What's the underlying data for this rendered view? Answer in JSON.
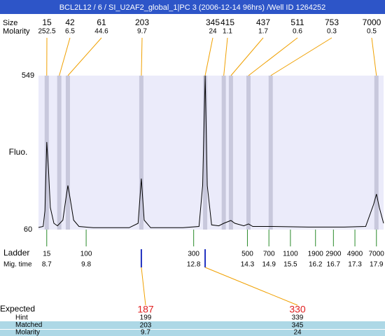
{
  "header": {
    "title": "BCL2L12 / 6 / SI_U2AF2_global_1|PC 3 (2006-12-14 96hrs) /Well ID 1264252"
  },
  "chart_data": {
    "type": "electropherogram",
    "y_label": "Fluo.",
    "ylim": [
      60,
      549
    ],
    "yticks": [
      60,
      549
    ],
    "xlim": [
      8.47,
      18.1
    ],
    "peak_row_labels": [
      "Size",
      "Molarity"
    ],
    "peaks": {
      "time": [
        8.7,
        9.05,
        9.29,
        11.34,
        13.12,
        13.64,
        13.84,
        14.33,
        14.95,
        17.9
      ],
      "size": [
        15,
        42,
        61,
        203,
        345,
        415,
        437,
        511,
        753,
        7000
      ],
      "molarity": [
        252.5,
        6.5,
        44.6,
        9.7,
        24,
        1.1,
        1.7,
        0.6,
        0.3,
        0.5
      ]
    },
    "ladder": {
      "label": "Ladder",
      "time_label": "Mig. time",
      "sizes": [
        15,
        100,
        300,
        500,
        700,
        1100,
        1900,
        2900,
        4900,
        7000
      ],
      "times": [
        8.7,
        9.8,
        12.8,
        14.3,
        14.9,
        15.5,
        16.2,
        16.7,
        17.3,
        17.9
      ]
    },
    "trace": {
      "x": [
        8.47,
        8.6,
        8.65,
        8.7,
        8.75,
        8.8,
        8.9,
        9.0,
        9.15,
        9.25,
        9.29,
        9.35,
        9.45,
        9.6,
        10,
        11,
        11.25,
        11.34,
        11.42,
        11.6,
        12.5,
        12.95,
        13.05,
        13.12,
        13.18,
        13.3,
        13.5,
        13.64,
        13.84,
        13.95,
        14.2,
        14.33,
        14.45,
        15,
        16,
        17,
        17.6,
        17.82,
        17.9,
        17.98,
        18.1
      ],
      "values": [
        67,
        70,
        120,
        338,
        250,
        130,
        80,
        72,
        90,
        170,
        200,
        160,
        90,
        70,
        66,
        66,
        80,
        222,
        90,
        66,
        66,
        70,
        200,
        549,
        200,
        75,
        72,
        80,
        89,
        80,
        72,
        78,
        70,
        70,
        68,
        68,
        70,
        140,
        173,
        130,
        80
      ]
    },
    "expected": {
      "label": "Expected",
      "row_labels": [
        "Hint",
        "Matched",
        "Molarity"
      ],
      "expected": [
        187,
        330
      ],
      "hint": [
        199,
        339
      ],
      "matched": [
        203,
        345
      ],
      "molarity": [
        9.7,
        24
      ]
    }
  }
}
